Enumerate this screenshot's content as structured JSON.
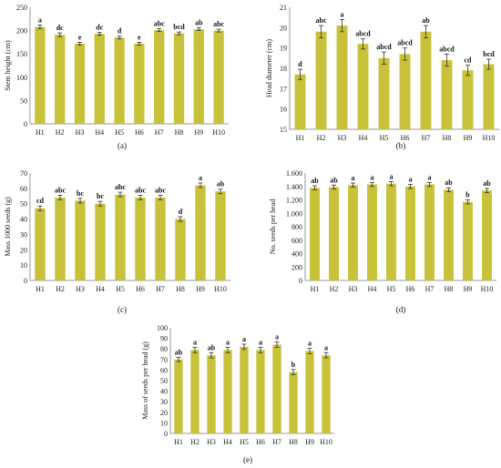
{
  "chart_data": [
    {
      "type": "bar",
      "panel_label": "(a)",
      "categories": [
        "H1",
        "H2",
        "H3",
        "H4",
        "H5",
        "H6",
        "H7",
        "H8",
        "H9",
        "H10"
      ],
      "values": [
        208,
        191,
        172,
        193,
        185,
        172,
        201,
        194,
        203,
        200
      ],
      "errors": [
        4,
        4,
        3,
        3,
        3,
        3,
        3,
        3,
        3,
        3
      ],
      "letters": [
        "a",
        "dc",
        "e",
        "dc",
        "d",
        "e",
        "abc",
        "bcd",
        "ab",
        "abc"
      ],
      "ylabel": "Stem height (cm)",
      "ylim": [
        0,
        250
      ],
      "yticks": [
        0,
        50,
        100,
        150,
        200,
        250
      ],
      "yticklabels": [
        "0",
        "50",
        "100",
        "150",
        "200",
        "250"
      ],
      "bar_color": "#c8c23a",
      "grid": false
    },
    {
      "type": "bar",
      "panel_label": "(b)",
      "categories": [
        "H1",
        "H2",
        "H3",
        "H4",
        "H5",
        "H6",
        "H7",
        "H8",
        "H9",
        "H10"
      ],
      "values": [
        17.7,
        19.8,
        20.1,
        19.2,
        18.5,
        18.7,
        19.8,
        18.4,
        17.9,
        18.2
      ],
      "errors": [
        0.25,
        0.3,
        0.3,
        0.25,
        0.3,
        0.3,
        0.3,
        0.3,
        0.25,
        0.25
      ],
      "letters": [
        "d",
        "abc",
        "a",
        "abcd",
        "abcd",
        "abcd",
        "ab",
        "abcd",
        "cd",
        "bcd"
      ],
      "ylabel": "Head diameter (cm)",
      "ylim": [
        15,
        21
      ],
      "yticks": [
        15,
        16,
        17,
        18,
        19,
        20,
        21
      ],
      "yticklabels": [
        "15",
        "16",
        "17",
        "18",
        "19",
        "20",
        "21"
      ],
      "bar_color": "#c8c23a",
      "grid": false
    },
    {
      "type": "bar",
      "panel_label": "(c)",
      "categories": [
        "H1",
        "H2",
        "H3",
        "H4",
        "H5",
        "H6",
        "H7",
        "H8",
        "H9",
        "H10"
      ],
      "values": [
        47,
        54,
        52,
        50,
        56,
        54,
        54,
        40,
        62,
        58
      ],
      "errors": [
        1.5,
        1.5,
        1.5,
        1.5,
        1.5,
        1.5,
        1.5,
        1.5,
        1.5,
        1.5
      ],
      "letters": [
        "cd",
        "abc",
        "bc",
        "bc",
        "abc",
        "abc",
        "abc",
        "d",
        "a",
        "ab"
      ],
      "ylabel": "Mass 1000 seeds (g)",
      "ylim": [
        0,
        70
      ],
      "yticks": [
        0,
        10,
        20,
        30,
        40,
        50,
        60,
        70
      ],
      "yticklabels": [
        "0",
        "10",
        "20",
        "30",
        "40",
        "50",
        "60",
        "70"
      ],
      "bar_color": "#c8c23a",
      "grid": false
    },
    {
      "type": "bar",
      "panel_label": "(d)",
      "categories": [
        "H1",
        "H2",
        "H3",
        "H4",
        "H5",
        "H6",
        "H7",
        "H8",
        "H9",
        "H10"
      ],
      "values": [
        1380,
        1390,
        1420,
        1430,
        1440,
        1400,
        1430,
        1350,
        1170,
        1340
      ],
      "errors": [
        30,
        30,
        30,
        30,
        30,
        30,
        30,
        30,
        30,
        30
      ],
      "letters": [
        "ab",
        "ab",
        "a",
        "a",
        "a",
        "a",
        "a",
        "ab",
        "b",
        "ab"
      ],
      "ylabel": "No. seeds per head",
      "ylim": [
        0,
        1600
      ],
      "yticks": [
        0,
        200,
        400,
        600,
        800,
        1000,
        1200,
        1400,
        1600
      ],
      "yticklabels": [
        "0",
        "200",
        "400",
        "600",
        "800",
        "1.000",
        "1.200",
        "1.400",
        "1.600"
      ],
      "bar_color": "#c8c23a",
      "grid": false
    },
    {
      "type": "bar",
      "panel_label": "(e)",
      "categories": [
        "H1",
        "H2",
        "H3",
        "H4",
        "H5",
        "H6",
        "H7",
        "H8",
        "H9",
        "H10"
      ],
      "values": [
        70,
        79,
        74,
        79,
        82,
        79,
        84,
        58,
        78,
        74
      ],
      "errors": [
        2,
        2.5,
        2.5,
        2.5,
        2.5,
        2.5,
        2.5,
        2.5,
        2.5,
        2.5
      ],
      "letters": [
        "ab",
        "a",
        "ab",
        "a",
        "a",
        "a",
        "a",
        "b",
        "a",
        "a"
      ],
      "ylabel": "Mass of seeds per head (g)",
      "ylim": [
        0,
        100
      ],
      "yticks": [
        0,
        10,
        20,
        30,
        40,
        50,
        60,
        70,
        80,
        90,
        100
      ],
      "yticklabels": [
        "0",
        "10",
        "20",
        "30",
        "40",
        "50",
        "60",
        "70",
        "80",
        "90",
        "100"
      ],
      "bar_color": "#c8c23a",
      "grid": false
    }
  ]
}
